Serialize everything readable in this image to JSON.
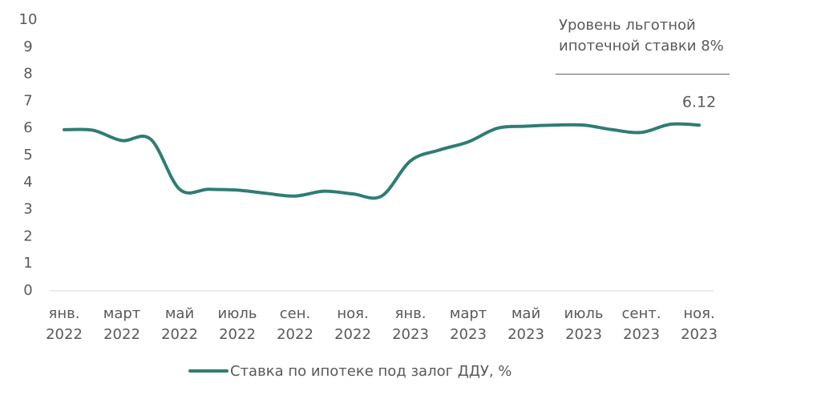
{
  "chart_data": {
    "type": "line",
    "categories": [
      "янв.\n2022",
      null,
      "март\n2022",
      null,
      "май\n2022",
      null,
      "июль\n2022",
      null,
      "сен.\n2022",
      null,
      "ноя.\n2022",
      null,
      "янв.\n2023",
      null,
      "март\n2023",
      null,
      "май\n2023",
      null,
      "июль\n2023",
      null,
      "сент.\n2023",
      null,
      "ноя.\n2023"
    ],
    "series": [
      {
        "name": "Ставка по ипотеке под залог ДДУ, %",
        "color": "#2f7d72",
        "values": [
          5.95,
          5.93,
          5.55,
          5.6,
          3.75,
          3.75,
          3.72,
          3.6,
          3.5,
          3.68,
          3.58,
          3.5,
          4.8,
          5.2,
          5.5,
          6.0,
          6.08,
          6.12,
          6.12,
          5.95,
          5.85,
          6.15,
          6.12
        ]
      }
    ],
    "label_last": true,
    "reference_line": {
      "value": 8,
      "label": "Уровень льготной\nипотечной ставки 8%"
    },
    "ylim": [
      0,
      10
    ],
    "yticks": [
      0,
      1,
      2,
      3,
      4,
      5,
      6,
      7,
      8,
      9,
      10
    ],
    "legend": "bottom"
  }
}
